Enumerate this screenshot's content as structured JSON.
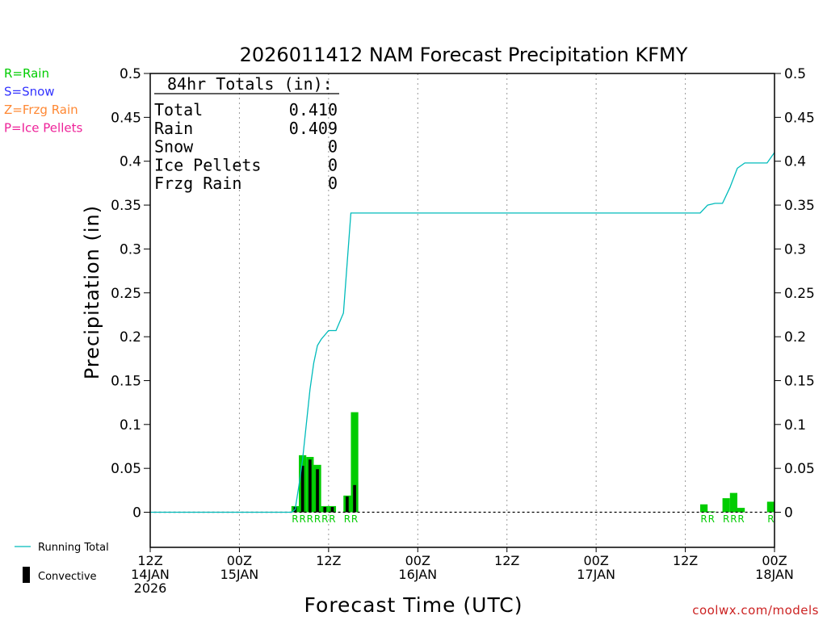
{
  "chart_data": {
    "type": "bar",
    "title": "2026011412 NAM Forecast Precipitation KFMY",
    "xlabel": "Forecast Time (UTC)",
    "ylabel": "Precipitation (in)",
    "ylim": [
      -0.04,
      0.5
    ],
    "xlim_hours": [
      0,
      84
    ],
    "y_ticks": [
      {
        "value": 0.5,
        "label": "0.5"
      },
      {
        "value": 0.45,
        "label": "0.45"
      },
      {
        "value": 0.4,
        "label": "0.4"
      },
      {
        "value": 0.35,
        "label": "0.35"
      },
      {
        "value": 0.3,
        "label": "0.3"
      },
      {
        "value": 0.25,
        "label": "0.25"
      },
      {
        "value": 0.2,
        "label": "0.2"
      },
      {
        "value": 0.15,
        "label": "0.15"
      },
      {
        "value": 0.1,
        "label": "0.1"
      },
      {
        "value": 0.05,
        "label": "0.05"
      },
      {
        "value": 0,
        "label": "0"
      }
    ],
    "x_ticks": [
      {
        "hour": 0,
        "line1": "12Z",
        "line2": "14JAN",
        "line3": "2026"
      },
      {
        "hour": 12,
        "line1": "00Z",
        "line2": "15JAN",
        "line3": ""
      },
      {
        "hour": 24,
        "line1": "12Z",
        "line2": "",
        "line3": ""
      },
      {
        "hour": 36,
        "line1": "00Z",
        "line2": "16JAN",
        "line3": ""
      },
      {
        "hour": 48,
        "line1": "12Z",
        "line2": "",
        "line3": ""
      },
      {
        "hour": 60,
        "line1": "00Z",
        "line2": "17JAN",
        "line3": ""
      },
      {
        "hour": 72,
        "line1": "12Z",
        "line2": "",
        "line3": ""
      },
      {
        "hour": 84,
        "line1": "00Z",
        "line2": "18JAN",
        "line3": ""
      }
    ],
    "bars": [
      {
        "hour": 20,
        "total": 0.007,
        "convective": 0.006,
        "ptype": "R"
      },
      {
        "hour": 21,
        "total": 0.065,
        "convective": 0.053,
        "ptype": "R"
      },
      {
        "hour": 22,
        "total": 0.063,
        "convective": 0.06,
        "ptype": "R"
      },
      {
        "hour": 23,
        "total": 0.054,
        "convective": 0.049,
        "ptype": "R"
      },
      {
        "hour": 24,
        "total": 0.007,
        "convective": 0.006,
        "ptype": "R"
      },
      {
        "hour": 25,
        "total": 0.007,
        "convective": 0.006,
        "ptype": "R"
      },
      {
        "hour": 27,
        "total": 0.019,
        "convective": 0.018,
        "ptype": "R"
      },
      {
        "hour": 28,
        "total": 0.114,
        "convective": 0.031,
        "ptype": "R"
      },
      {
        "hour": 75,
        "total": 0.009,
        "convective": 0,
        "ptype": "R"
      },
      {
        "hour": 76,
        "total": 0.001,
        "convective": 0,
        "ptype": "R"
      },
      {
        "hour": 78,
        "total": 0.016,
        "convective": 0,
        "ptype": "R"
      },
      {
        "hour": 79,
        "total": 0.022,
        "convective": 0,
        "ptype": "R"
      },
      {
        "hour": 80,
        "total": 0.005,
        "convective": 0,
        "ptype": "R"
      },
      {
        "hour": 84,
        "total": 0.012,
        "convective": 0,
        "ptype": "R"
      }
    ],
    "running_total": {
      "name": "Running Total",
      "x": [
        0,
        19,
        19.5,
        20,
        20.5,
        21,
        21.5,
        22,
        22.5,
        23,
        24,
        25,
        26,
        27,
        28,
        74,
        75,
        76,
        77,
        78,
        79,
        80,
        81,
        82,
        83,
        84
      ],
      "y": [
        0,
        0,
        0.003,
        0.03,
        0.06,
        0.1,
        0.14,
        0.17,
        0.19,
        0.197,
        0.207,
        0.207,
        0.227,
        0.341,
        0.341,
        0.341,
        0.35,
        0.352,
        0.352,
        0.37,
        0.392,
        0.398,
        0.398,
        0.398,
        0.398,
        0.41
      ]
    },
    "ptype_legend": [
      {
        "label": "R=Rain",
        "color": "#00cc00"
      },
      {
        "label": "S=Snow",
        "color": "#3333ff"
      },
      {
        "label": "Z=Frzg Rain",
        "color": "#ff8833"
      },
      {
        "label": "P=Ice Pellets",
        "color": "#ee2299"
      }
    ],
    "series_legend": {
      "running_total": "Running Total",
      "convective": "Convective"
    },
    "totals_box": {
      "header": "84hr Totals (in):",
      "rows": [
        {
          "label": "Total",
          "value": "0.410"
        },
        {
          "label": "Rain",
          "value": "0.409"
        },
        {
          "label": "Snow",
          "value": "0"
        },
        {
          "label": "Ice Pellets",
          "value": "0"
        },
        {
          "label": "Frzg Rain",
          "value": "0"
        }
      ]
    },
    "credit": "coolwx.com/models",
    "colors": {
      "bar": "#00cc00",
      "convective": "#000000",
      "running_total": "#00bbbb",
      "ptype_text": "#00cc00",
      "grid": "#999999",
      "credit": "#cc2222"
    }
  }
}
